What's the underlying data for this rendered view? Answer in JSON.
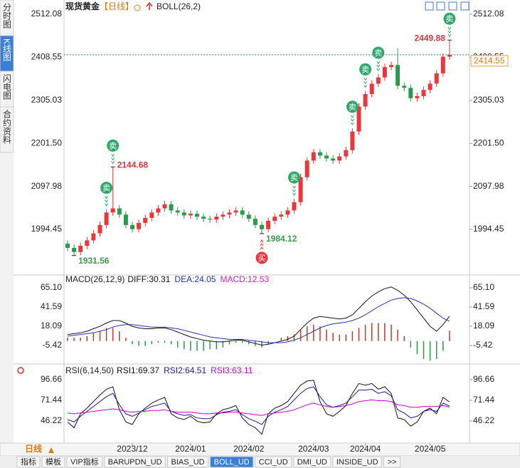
{
  "header": {
    "symbol": "现货黄金",
    "period": "【日线】",
    "indicator": "BOLL(26,2)"
  },
  "sidebar": {
    "tabs": [
      "分时图",
      "K线图",
      "闪电图",
      "合约资料"
    ],
    "selected": 1
  },
  "chart_data": [
    {
      "type": "candlestick",
      "categories": [
        null,
        null,
        null,
        null,
        null,
        null,
        null,
        null,
        null,
        null,
        "2023/12",
        null,
        null,
        null,
        null,
        null,
        null,
        null,
        null,
        "2024/01",
        null,
        null,
        null,
        null,
        null,
        null,
        null,
        null,
        "2024/02",
        null,
        null,
        null,
        null,
        null,
        null,
        null,
        null,
        null,
        "2024/03",
        null,
        null,
        null,
        null,
        null,
        null,
        null,
        "2024/04",
        null,
        null,
        null,
        null,
        null,
        null,
        null,
        null,
        null,
        "2024/05",
        null,
        null,
        null
      ],
      "open": [
        1960,
        1950,
        1940,
        1955,
        1968,
        1985,
        2005,
        2035,
        2045,
        2030,
        2005,
        1995,
        2010,
        2022,
        2035,
        2045,
        2055,
        2040,
        2035,
        2028,
        2032,
        2025,
        2020,
        2018,
        2025,
        2030,
        2035,
        2040,
        2030,
        2020,
        2005,
        1995,
        2015,
        2025,
        2030,
        2040,
        2060,
        2120,
        2160,
        2180,
        2172,
        2165,
        2160,
        2170,
        2185,
        2230,
        2290,
        2320,
        2345,
        2360,
        2385,
        2390,
        2340,
        2335,
        2310,
        2315,
        2330,
        2345,
        2370,
        2410
      ],
      "high": [
        1968,
        1958,
        1963,
        1976,
        1993,
        2013,
        2043,
        2144.68,
        2053,
        2038,
        2013,
        2018,
        2030,
        2043,
        2053,
        2063,
        2063,
        2048,
        2043,
        2040,
        2040,
        2033,
        2028,
        2033,
        2038,
        2043,
        2048,
        2048,
        2038,
        2028,
        2013,
        2023,
        2033,
        2038,
        2048,
        2068,
        2128,
        2168,
        2188,
        2188,
        2180,
        2173,
        2178,
        2193,
        2238,
        2298,
        2328,
        2353,
        2368,
        2393,
        2398,
        2430,
        2348,
        2343,
        2323,
        2338,
        2353,
        2378,
        2418,
        2449.88
      ],
      "low": [
        1942,
        1931.56,
        1932,
        1947,
        1960,
        1977,
        1997,
        2027,
        2022,
        1997,
        1987,
        1987,
        2002,
        2014,
        2027,
        2037,
        2032,
        2027,
        2020,
        2020,
        2017,
        2012,
        2010,
        2010,
        2017,
        2022,
        2027,
        2022,
        2012,
        1997,
        1984.12,
        1987,
        2007,
        2017,
        2022,
        2032,
        2052,
        2112,
        2152,
        2164,
        2157,
        2152,
        2152,
        2162,
        2177,
        2222,
        2282,
        2312,
        2337,
        2352,
        2377,
        2332,
        2327,
        2302,
        2302,
        2307,
        2322,
        2337,
        2362,
        2402
      ],
      "close": [
        1950,
        1940,
        1955,
        1968,
        1985,
        2005,
        2035,
        2045,
        2030,
        2005,
        1995,
        2010,
        2022,
        2035,
        2045,
        2055,
        2040,
        2035,
        2028,
        2032,
        2025,
        2020,
        2018,
        2025,
        2030,
        2035,
        2040,
        2030,
        2020,
        2005,
        1995,
        2015,
        2025,
        2030,
        2040,
        2060,
        2120,
        2160,
        2180,
        2172,
        2165,
        2160,
        2170,
        2185,
        2230,
        2290,
        2320,
        2345,
        2360,
        2385,
        2390,
        2340,
        2335,
        2310,
        2315,
        2330,
        2345,
        2370,
        2410,
        2414.55
      ],
      "signals": [
        null,
        null,
        null,
        null,
        null,
        null,
        "卖",
        "卖",
        null,
        null,
        null,
        null,
        null,
        null,
        null,
        null,
        null,
        null,
        null,
        null,
        null,
        null,
        null,
        null,
        null,
        null,
        null,
        null,
        null,
        null,
        "买",
        null,
        null,
        null,
        null,
        "卖",
        null,
        null,
        null,
        null,
        null,
        null,
        null,
        null,
        "卖",
        null,
        "卖",
        null,
        "卖",
        null,
        null,
        null,
        null,
        null,
        null,
        null,
        null,
        null,
        null,
        "卖"
      ],
      "up_color": "#e8383d",
      "down_color": "#2b9a4d",
      "last_price_color": "#2a7fd4",
      "ylim": [
        1886.5,
        2529.2
      ],
      "yticks": [
        2512.08,
        2408.55,
        2305.03,
        {
          "value": 2201.5,
          "label": "2201.50"
        },
        2097.98,
        1994.45
      ]
    },
    {
      "type": "macd",
      "title": "MACD(26,12,9)",
      "series": [
        {
          "name": "DIFF:",
          "color": "#111111",
          "values": [
            8,
            9,
            10,
            12,
            15,
            18,
            22,
            25,
            25,
            22,
            18,
            16,
            15,
            15,
            16,
            16,
            14,
            11,
            8,
            5,
            3,
            1,
            0,
            -1,
            -1,
            0,
            1,
            1,
            -1,
            -3,
            -5,
            -4,
            -2,
            0,
            2,
            6,
            14,
            22,
            28,
            30,
            29,
            28,
            27,
            28,
            32,
            40,
            48,
            55,
            60,
            64,
            66,
            62,
            56,
            48,
            38,
            28,
            18,
            12,
            20,
            30.31
          ]
        },
        {
          "name": "DEA:",
          "color": "#2233bb",
          "values": [
            6,
            7,
            8,
            9,
            10,
            12,
            14,
            17,
            19,
            20,
            20,
            19,
            18,
            17,
            17,
            17,
            16,
            15,
            13,
            11,
            9,
            7,
            5,
            4,
            3,
            2,
            2,
            2,
            1,
            0,
            -1,
            -2,
            -2,
            -2,
            -1,
            1,
            4,
            8,
            12,
            16,
            19,
            21,
            22,
            23,
            25,
            28,
            32,
            37,
            42,
            46,
            50,
            52,
            53,
            52,
            49,
            45,
            40,
            34,
            28,
            24.05
          ]
        },
        {
          "name": "MACD:",
          "color": "#cc22cc",
          "style": "histogram",
          "up_color": "#c0392b",
          "down_color": "#2b9a4d",
          "values": [
            4,
            4,
            4,
            6,
            10,
            12,
            16,
            16,
            12,
            4,
            -4,
            -6,
            -6,
            -4,
            -2,
            -2,
            -4,
            -8,
            -10,
            -12,
            -12,
            -12,
            -10,
            -10,
            -8,
            -4,
            -2,
            -2,
            -4,
            -6,
            -8,
            -4,
            0,
            4,
            6,
            8,
            14,
            18,
            20,
            18,
            14,
            10,
            8,
            8,
            12,
            16,
            20,
            22,
            22,
            22,
            20,
            14,
            6,
            -8,
            -16,
            -22,
            -24,
            -22,
            -12,
            12.53
          ]
        }
      ],
      "ylim": [
        -27.2,
        79.0
      ],
      "yticks": [
        {
          "value": 65.1,
          "label": "65.10"
        },
        41.59,
        18.09,
        -5.42
      ]
    },
    {
      "type": "line",
      "title": "RSI(6,14,50)",
      "series": [
        {
          "name": "RSI1:",
          "color": "#111111",
          "values": [
            45,
            38,
            55,
            62,
            70,
            78,
            85,
            88,
            60,
            45,
            42,
            55,
            62,
            68,
            72,
            75,
            55,
            50,
            48,
            52,
            46,
            44,
            45,
            55,
            60,
            62,
            65,
            50,
            42,
            38,
            30,
            55,
            62,
            65,
            70,
            80,
            90,
            95,
            96,
            70,
            55,
            52,
            58,
            65,
            80,
            92,
            90,
            92,
            85,
            88,
            80,
            50,
            48,
            40,
            45,
            58,
            62,
            55,
            75,
            69.37
          ]
        },
        {
          "name": "RSI2:",
          "color": "#1a1aaa",
          "values": [
            48,
            45,
            52,
            58,
            64,
            70,
            76,
            80,
            66,
            55,
            52,
            56,
            60,
            64,
            66,
            68,
            58,
            55,
            53,
            54,
            50,
            49,
            49,
            54,
            57,
            58,
            60,
            54,
            49,
            46,
            42,
            52,
            57,
            60,
            64,
            72,
            80,
            86,
            88,
            76,
            66,
            63,
            65,
            68,
            76,
            84,
            84,
            85,
            80,
            82,
            77,
            60,
            56,
            50,
            52,
            58,
            60,
            58,
            68,
            64.51
          ]
        },
        {
          "name": "RSI3:",
          "color": "#cc00cc",
          "values": [
            56,
            55,
            56,
            57,
            58,
            59,
            60,
            61,
            60,
            58,
            57,
            58,
            58,
            59,
            59,
            60,
            58,
            57,
            57,
            57,
            56,
            55,
            55,
            56,
            56,
            57,
            57,
            56,
            55,
            54,
            53,
            55,
            56,
            57,
            58,
            60,
            63,
            66,
            68,
            66,
            64,
            63,
            64,
            65,
            67,
            70,
            71,
            72,
            71,
            71,
            70,
            66,
            65,
            63,
            63,
            64,
            64,
            64,
            65,
            63.11
          ]
        }
      ],
      "ylim": [
        19.26,
        114.05
      ],
      "yticks": [
        96.66,
        71.44,
        46.22
      ]
    }
  ],
  "footer": {
    "period": "日线",
    "tabs": [
      "指标",
      "模板",
      "VIP指标",
      "BARUPDN_UD",
      "BIAS_UD",
      "BOLL_UD",
      "CCI_UD",
      "DMI_UD",
      "INSIDE_UD",
      ">>"
    ],
    "selected": 5
  }
}
